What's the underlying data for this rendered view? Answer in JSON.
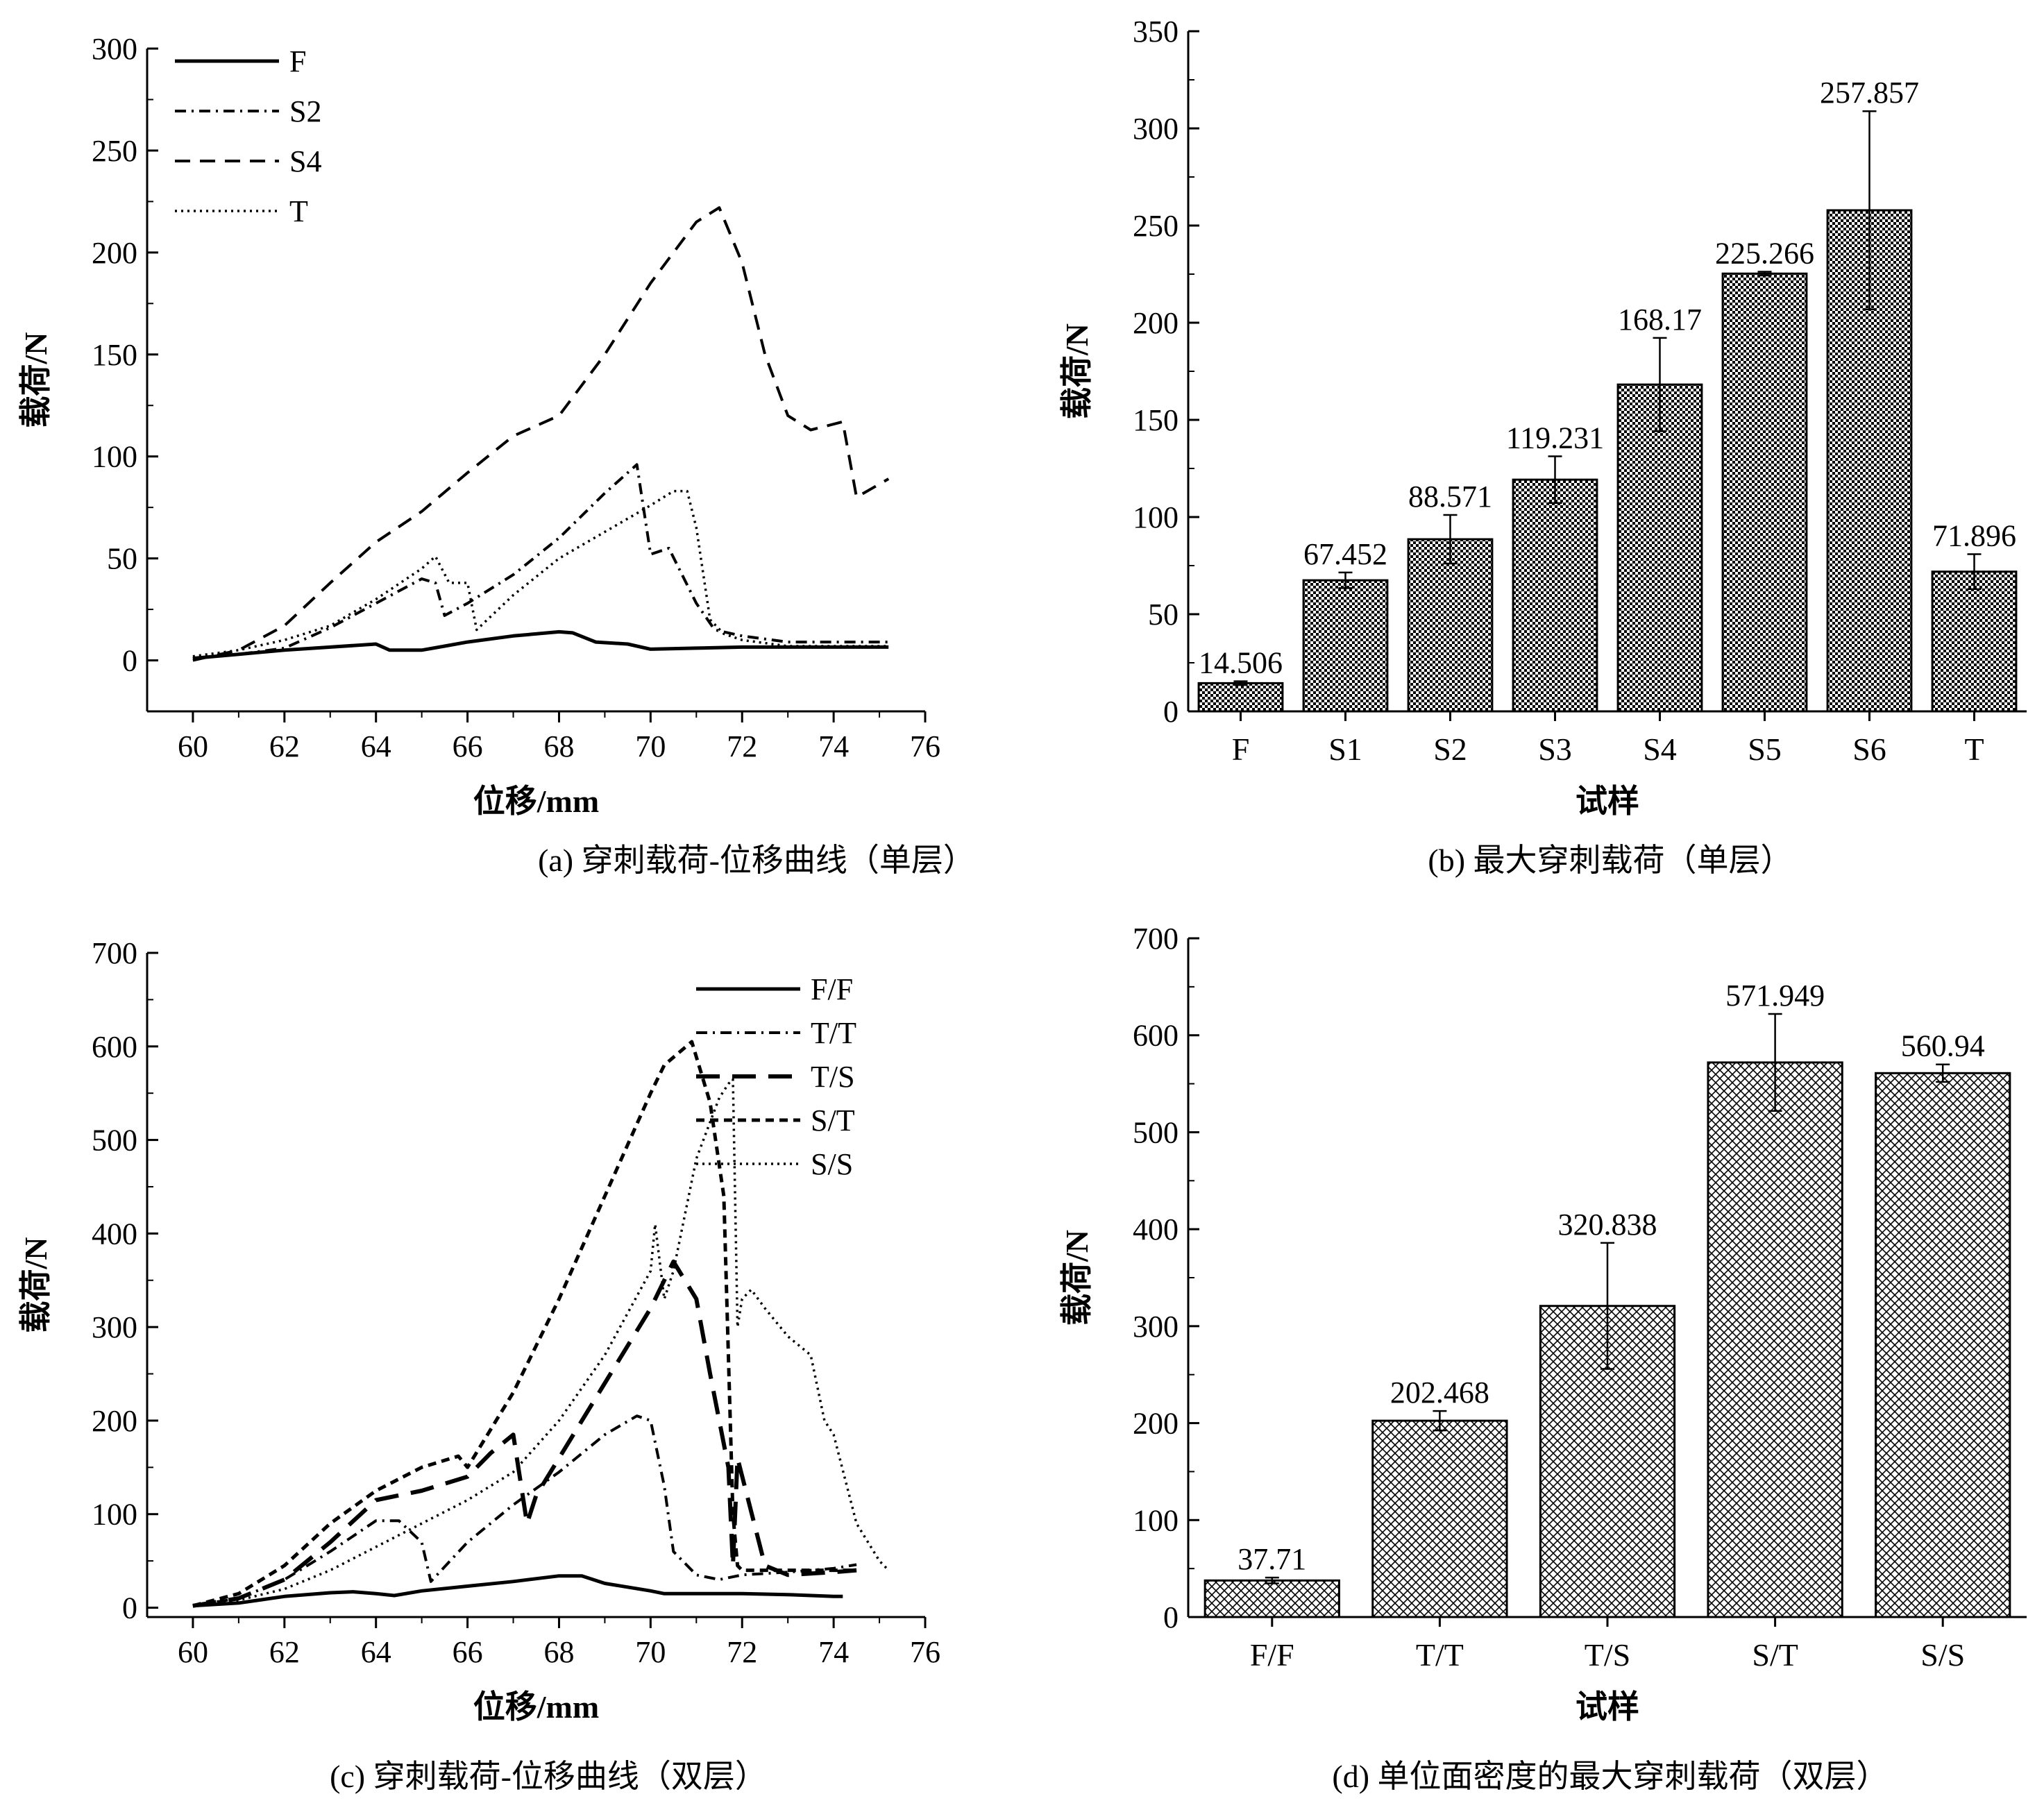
{
  "chart_data": [
    {
      "id": "a",
      "type": "line",
      "caption": "(a)  穿刺载荷-位移曲线（单层）",
      "xlabel": "位移/mm",
      "ylabel": "载荷/N",
      "xlim": [
        59,
        76
      ],
      "ylim": [
        -25,
        300
      ],
      "xticks": [
        60,
        62,
        64,
        66,
        68,
        70,
        72,
        74,
        76
      ],
      "yticks": [
        0,
        50,
        100,
        150,
        200,
        250,
        300
      ],
      "legend_position": "top-left",
      "grid": false,
      "series": [
        {
          "name": "F",
          "style": "solid",
          "x": [
            60,
            61,
            62,
            63,
            64,
            64.3,
            65,
            65.5,
            66,
            67,
            68,
            68.3,
            68.8,
            69.5,
            70,
            71,
            72,
            73,
            74,
            75.2
          ],
          "y": [
            1,
            3,
            5,
            6.5,
            8,
            5,
            5,
            7,
            9,
            12,
            14,
            13.5,
            9,
            8,
            5.5,
            6,
            6.5,
            6.5,
            6.5,
            6.5
          ]
        },
        {
          "name": "S2",
          "style": "dashdot",
          "x": [
            60,
            61,
            62,
            63,
            64,
            65,
            65.3,
            65.5,
            66,
            67,
            68,
            69,
            69.7,
            70,
            70.4,
            71,
            71.4,
            72,
            73,
            74,
            75.2
          ],
          "y": [
            1,
            3,
            6,
            16,
            28,
            40,
            38,
            22,
            28,
            42,
            60,
            82,
            96,
            52,
            55,
            28,
            15,
            12,
            9,
            9,
            9
          ]
        },
        {
          "name": "S4",
          "style": "dashed",
          "x": [
            60,
            61,
            62,
            63,
            64,
            65,
            66,
            67,
            68,
            69,
            70,
            71,
            71.5,
            72,
            72.5,
            73,
            73.5,
            74.2,
            74.5,
            75.2
          ],
          "y": [
            0,
            5,
            17,
            38,
            58,
            73,
            92,
            110,
            120,
            150,
            185,
            215,
            222,
            195,
            150,
            120,
            113,
            117,
            80,
            89
          ]
        },
        {
          "name": "T",
          "style": "dotted",
          "x": [
            60,
            61,
            62,
            63,
            64,
            65,
            65.3,
            65.6,
            66,
            66.2,
            67,
            68,
            69,
            70,
            70.5,
            70.8,
            71,
            71.3,
            71.6,
            72,
            73,
            75.2
          ],
          "y": [
            2,
            5,
            10,
            17,
            30,
            45,
            51,
            38,
            38,
            15,
            32,
            50,
            63,
            76,
            83,
            83,
            65,
            20,
            13,
            10,
            7,
            7
          ]
        }
      ]
    },
    {
      "id": "b",
      "type": "bar",
      "caption": "(b)  最大穿刺载荷（单层）",
      "xlabel": "试样",
      "ylabel": "载荷/N",
      "ylim": [
        0,
        350
      ],
      "yticks": [
        0,
        50,
        100,
        150,
        200,
        250,
        300,
        350
      ],
      "categories": [
        "F",
        "S1",
        "S2",
        "S3",
        "S4",
        "S5",
        "S6",
        "T"
      ],
      "values": [
        14.506,
        67.452,
        88.571,
        119.231,
        168.17,
        225.266,
        257.857,
        71.896
      ],
      "value_labels": [
        "14.506",
        "67.452",
        "88.571",
        "119.231",
        "168.17",
        "225.266",
        "257.857",
        "71.896"
      ],
      "errors": [
        1,
        4,
        12.5,
        12,
        24,
        1,
        51,
        9
      ],
      "pattern": "checker",
      "grid": false
    },
    {
      "id": "c",
      "type": "line",
      "caption": "(c)  穿刺载荷-位移曲线（双层）",
      "xlabel": "位移/mm",
      "ylabel": "载荷/N",
      "xlim": [
        59,
        76
      ],
      "ylim": [
        -10,
        700
      ],
      "xticks": [
        60,
        62,
        64,
        66,
        68,
        70,
        72,
        74,
        76
      ],
      "yticks": [
        0,
        100,
        200,
        300,
        400,
        500,
        600,
        700
      ],
      "legend_position": "top-right",
      "grid": false,
      "series": [
        {
          "name": "F/F",
          "style": "solid",
          "x": [
            60,
            61,
            62,
            63,
            63.5,
            64,
            64.4,
            65,
            66,
            67,
            68,
            68.5,
            69,
            70,
            70.3,
            71,
            72,
            73,
            74,
            74.2
          ],
          "y": [
            2,
            5,
            12,
            16,
            17,
            15,
            13,
            18,
            23,
            28,
            34,
            34,
            26,
            18,
            15,
            15,
            15,
            14,
            12,
            12
          ]
        },
        {
          "name": "T/T",
          "style": "dashdot",
          "x": [
            60,
            61,
            62,
            63,
            64,
            64.5,
            65,
            65.2,
            66,
            67,
            68,
            69,
            69.7,
            70,
            70.3,
            70.5,
            71,
            71.5,
            72,
            73,
            74,
            74.5
          ],
          "y": [
            2,
            10,
            30,
            60,
            93,
            93,
            70,
            28,
            70,
            110,
            145,
            185,
            205,
            200,
            130,
            60,
            35,
            30,
            35,
            38,
            42,
            46
          ]
        },
        {
          "name": "T/S",
          "style": "longdash",
          "x": [
            60,
            61,
            62,
            63,
            64,
            65,
            66,
            66.5,
            67,
            67.3,
            67.5,
            68,
            69,
            70,
            70.5,
            71,
            71.3,
            71.7,
            71.8,
            71.9,
            72.5,
            73,
            74,
            74.5
          ],
          "y": [
            2,
            10,
            30,
            70,
            115,
            125,
            140,
            165,
            185,
            90,
            120,
            160,
            240,
            320,
            370,
            330,
            250,
            150,
            45,
            160,
            45,
            35,
            38,
            40
          ]
        },
        {
          "name": "S/T",
          "style": "shortdash",
          "x": [
            60,
            61,
            62,
            63,
            64,
            65,
            65.8,
            66,
            67,
            68,
            69,
            70,
            70.3,
            70.9,
            71.3,
            71.6,
            71.8,
            71.9,
            72,
            73,
            74,
            74.5
          ],
          "y": [
            2,
            15,
            45,
            90,
            125,
            150,
            162,
            150,
            230,
            330,
            440,
            550,
            580,
            605,
            540,
            440,
            100,
            45,
            40,
            40,
            40,
            40
          ]
        },
        {
          "name": "S/S",
          "style": "dotted",
          "x": [
            60,
            61,
            62,
            63,
            64,
            65,
            66,
            67,
            68,
            69,
            70,
            70.1,
            70.3,
            70.5,
            71,
            71.5,
            71.7,
            71.8,
            71.9,
            72,
            72.2,
            72.5,
            73,
            73.5,
            73.8,
            74,
            74.5,
            75,
            75.2
          ],
          "y": [
            2,
            8,
            20,
            40,
            65,
            90,
            115,
            145,
            200,
            270,
            360,
            410,
            330,
            360,
            480,
            545,
            560,
            565,
            300,
            330,
            340,
            320,
            290,
            270,
            200,
            185,
            90,
            50,
            40
          ]
        }
      ]
    },
    {
      "id": "d",
      "type": "bar",
      "caption": "(d)  单位面密度的最大穿刺载荷（双层）",
      "xlabel": "试样",
      "ylabel": "载荷/N",
      "ylim": [
        0,
        700
      ],
      "yticks": [
        0,
        100,
        200,
        300,
        400,
        500,
        600,
        700
      ],
      "categories": [
        "F/F",
        "T/T",
        "T/S",
        "S/T",
        "S/S"
      ],
      "values": [
        37.71,
        202.468,
        320.838,
        571.949,
        560.94
      ],
      "value_labels": [
        "37.71",
        "202.468",
        "320.838",
        "571.949",
        "560.94"
      ],
      "errors": [
        3,
        10,
        65,
        50,
        9
      ],
      "pattern": "crosshatch",
      "grid": false
    }
  ]
}
